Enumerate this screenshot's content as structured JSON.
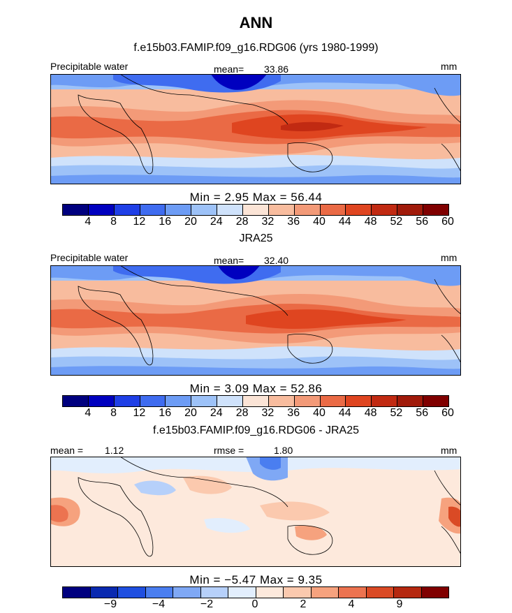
{
  "figure": {
    "title": "ANN",
    "panel1_title": "f.e15b03.FAMIP.f09_g16.RDG06 (yrs 1980-1999)",
    "panel2_title": "JRA25",
    "panel3_title": "f.e15b03.FAMIP.f09_g16.RDG06 - JRA25"
  },
  "colors": {
    "abs_scale": [
      "#00007f",
      "#0000bf",
      "#1f3fe6",
      "#3f6cf0",
      "#6d9cf5",
      "#9dc2f8",
      "#cfe2fb",
      "#fbe4d6",
      "#f8bc9e",
      "#f39a78",
      "#ea6a45",
      "#df4520",
      "#c12a12",
      "#a01a0a",
      "#800000"
    ],
    "diff_scale": [
      "#00007f",
      "#0a2ab0",
      "#1f4fe0",
      "#4a7ef0",
      "#7fa8f5",
      "#b6d0fa",
      "#e2eefd",
      "#fde9dc",
      "#fbc9ae",
      "#f6a27e",
      "#ec7350",
      "#da4a25",
      "#b52810",
      "#800000"
    ]
  },
  "chart_data": [
    {
      "type": "heatmap",
      "subtype": "global map (lat-lon contour)",
      "title": "f.e15b03.FAMIP.f09_g16.RDG06 (yrs 1980-1999)",
      "variable": "Precipitable water",
      "units": "mm",
      "mean_label": "mean=",
      "mean": "33.86",
      "min_label": "Min =",
      "min": "2.95",
      "max_label": "Max =",
      "max": "56.44",
      "colorbar_levels": [
        "4",
        "8",
        "12",
        "16",
        "20",
        "24",
        "28",
        "32",
        "36",
        "40",
        "44",
        "48",
        "52",
        "56",
        "60"
      ]
    },
    {
      "type": "heatmap",
      "subtype": "global map (lat-lon contour)",
      "title": "JRA25",
      "variable": "Precipitable water",
      "units": "mm",
      "mean_label": "mean=",
      "mean": "32.40",
      "min_label": "Min =",
      "min": "3.09",
      "max_label": "Max =",
      "max": "52.86",
      "colorbar_levels": [
        "4",
        "8",
        "12",
        "16",
        "20",
        "24",
        "28",
        "32",
        "36",
        "40",
        "44",
        "48",
        "52",
        "56",
        "60"
      ]
    },
    {
      "type": "heatmap",
      "subtype": "global map difference (lat-lon contour)",
      "title": "f.e15b03.FAMIP.f09_g16.RDG06 - JRA25",
      "units": "mm",
      "mean_label": "mean =",
      "mean": "1.12",
      "rmse_label": "rmse =",
      "rmse": "1.80",
      "min_label": "Min =",
      "min": "−5.47",
      "max_label": "Max =",
      "max": "9.35",
      "colorbar_levels": [
        "−9",
        "−4",
        "−2",
        "0",
        "2",
        "4",
        "9"
      ]
    }
  ]
}
